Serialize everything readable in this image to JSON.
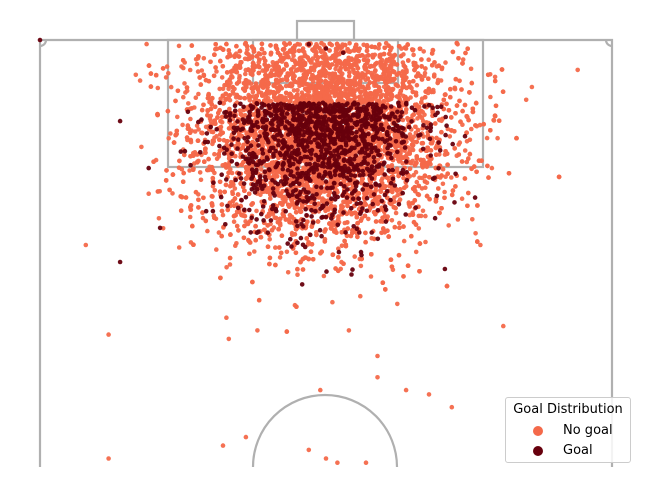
{
  "chart_data": {
    "type": "scatter",
    "background": "pitch-half",
    "pitch_line_color": "#b0b0b0",
    "legend": {
      "title": "Goal Distribution",
      "placement": "bottom-right",
      "entries": [
        {
          "label": "No goal",
          "color": "#f4694a"
        },
        {
          "label": "Goal",
          "color": "#67000d"
        }
      ]
    },
    "series": [
      {
        "name": "No goal",
        "color": "#f4694a",
        "approx_count": 7500,
        "cluster_center_x": 0.5,
        "cluster_center_y": 0.82,
        "sample_points": [
          {
            "x": 0.86,
            "y": 0.89
          },
          {
            "x": 0.94,
            "y": 0.93
          },
          {
            "x": 0.85,
            "y": 0.86
          },
          {
            "x": 0.79,
            "y": 0.7
          },
          {
            "x": 0.67,
            "y": 0.81
          },
          {
            "x": 0.8,
            "y": 0.77
          },
          {
            "x": 0.08,
            "y": 0.52
          },
          {
            "x": 0.12,
            "y": 0.31
          },
          {
            "x": 0.19,
            "y": 0.64
          },
          {
            "x": 0.24,
            "y": 0.82
          },
          {
            "x": 0.28,
            "y": 0.69
          },
          {
            "x": 0.32,
            "y": 0.59
          },
          {
            "x": 0.33,
            "y": 0.3
          },
          {
            "x": 0.38,
            "y": 0.32
          },
          {
            "x": 0.59,
            "y": 0.26
          },
          {
            "x": 0.59,
            "y": 0.21
          },
          {
            "x": 0.64,
            "y": 0.18
          },
          {
            "x": 0.68,
            "y": 0.17
          },
          {
            "x": 0.72,
            "y": 0.14
          },
          {
            "x": 0.57,
            "y": 0.74
          },
          {
            "x": 0.43,
            "y": 0.78
          },
          {
            "x": 0.36,
            "y": 0.07
          },
          {
            "x": 0.12,
            "y": 0.02
          },
          {
            "x": 0.32,
            "y": 0.05
          },
          {
            "x": 0.47,
            "y": 0.04
          },
          {
            "x": 0.5,
            "y": 0.02
          },
          {
            "x": 0.52,
            "y": 0.01
          },
          {
            "x": 0.57,
            "y": 0.01
          },
          {
            "x": 0.49,
            "y": 0.18
          },
          {
            "x": 0.56,
            "y": 0.4
          },
          {
            "x": 0.54,
            "y": 0.32
          },
          {
            "x": 0.81,
            "y": 0.33
          },
          {
            "x": 0.77,
            "y": 0.52
          },
          {
            "x": 0.46,
            "y": 0.98
          },
          {
            "x": 0.73,
            "y": 0.99
          },
          {
            "x": 0.64,
            "y": 0.98
          }
        ]
      },
      {
        "name": "Goal",
        "color": "#67000d",
        "approx_count": 1200,
        "cluster_center_x": 0.5,
        "cluster_center_y": 0.9,
        "sample_points": [
          {
            "x": 0.0,
            "y": 1.0
          },
          {
            "x": 0.14,
            "y": 0.81
          },
          {
            "x": 0.14,
            "y": 0.48
          },
          {
            "x": 0.19,
            "y": 0.7
          },
          {
            "x": 0.21,
            "y": 0.56
          },
          {
            "x": 0.5,
            "y": 0.98
          },
          {
            "x": 0.53,
            "y": 0.97
          },
          {
            "x": 0.47,
            "y": 0.99
          }
        ]
      }
    ]
  }
}
